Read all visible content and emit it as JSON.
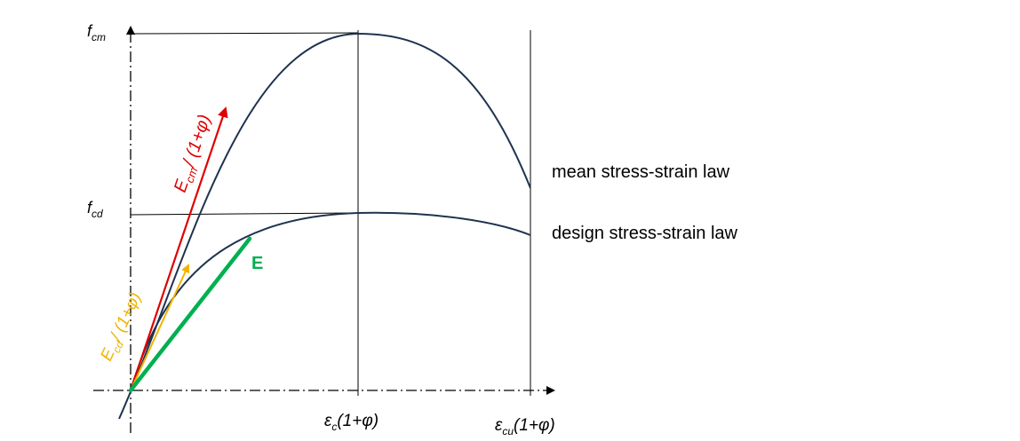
{
  "axes": {
    "y_tick_fcm": {
      "main": "f",
      "sub": "cm"
    },
    "y_tick_fcd": {
      "main": "f",
      "sub": "cd"
    },
    "x_tick_ec": {
      "pre": "ε",
      "sub": "c",
      "post": "(1+φ)"
    },
    "x_tick_ecu": {
      "pre": "ε",
      "sub": "cu",
      "post": "(1+φ)"
    }
  },
  "labels": {
    "mean_law": "mean stress-strain law",
    "design_law": "design stress-strain law",
    "ecm_label": {
      "main": "E",
      "sub": "cm",
      "post": "/ (1+φ)"
    },
    "ecd_label": {
      "main": "E",
      "sub": "cd",
      "post": "/ (1+φ)"
    },
    "e_label": "E"
  },
  "colors": {
    "curve": "#1f3350",
    "axis": "#000000",
    "ecm_arrow": "#e00000",
    "ecd_arrow": "#f0b400",
    "e_line": "#00b050"
  }
}
